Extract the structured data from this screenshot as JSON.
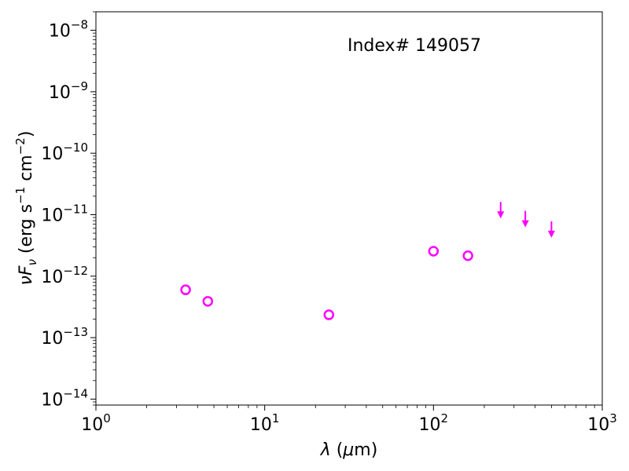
{
  "chart_data": {
    "type": "scatter",
    "annotation": "Index# 149057",
    "xlabel": {
      "symbol": "λ",
      "unit_open": " (",
      "unit_symbol": "μ",
      "unit_rest": "m)"
    },
    "ylabel": {
      "nu": "ν",
      "F": "F",
      "sub": "ν",
      "unit_a": " (erg s",
      "exp_a": "−1",
      "unit_b": " cm",
      "exp_b": "−2",
      "unit_c": ")"
    },
    "x_scale": "log",
    "y_scale": "log",
    "xlim": [
      1,
      1000
    ],
    "ylim": [
      8e-15,
      2e-08
    ],
    "x_ticks": [
      {
        "value": 1,
        "base": "10",
        "exp": "0"
      },
      {
        "value": 10,
        "base": "10",
        "exp": "1"
      },
      {
        "value": 100,
        "base": "10",
        "exp": "2"
      },
      {
        "value": 1000,
        "base": "10",
        "exp": "3"
      }
    ],
    "y_ticks": [
      {
        "value": 1e-14,
        "base": "10",
        "exp": "−14"
      },
      {
        "value": 1e-13,
        "base": "10",
        "exp": "−13"
      },
      {
        "value": 1e-12,
        "base": "10",
        "exp": "−12"
      },
      {
        "value": 1e-11,
        "base": "10",
        "exp": "−11"
      },
      {
        "value": 1e-10,
        "base": "10",
        "exp": "−10"
      },
      {
        "value": 1e-09,
        "base": "10",
        "exp": "−9"
      },
      {
        "value": 1e-08,
        "base": "10",
        "exp": "−8"
      }
    ],
    "grid": false,
    "series": [
      {
        "marker": "open-circle",
        "color": "#ff00ff",
        "points": [
          {
            "x": 3.4,
            "y": 6e-13
          },
          {
            "x": 4.6,
            "y": 3.9e-13
          },
          {
            "x": 24,
            "y": 2.35e-13
          },
          {
            "x": 100,
            "y": 2.55e-12
          },
          {
            "x": 160,
            "y": 2.15e-12
          }
        ]
      },
      {
        "marker": "upper-limit-arrow",
        "color": "#ff00ff",
        "points": [
          {
            "x": 250,
            "y": 9.5e-12
          },
          {
            "x": 350,
            "y": 6.8e-12
          },
          {
            "x": 500,
            "y": 4.6e-12
          }
        ]
      }
    ]
  }
}
